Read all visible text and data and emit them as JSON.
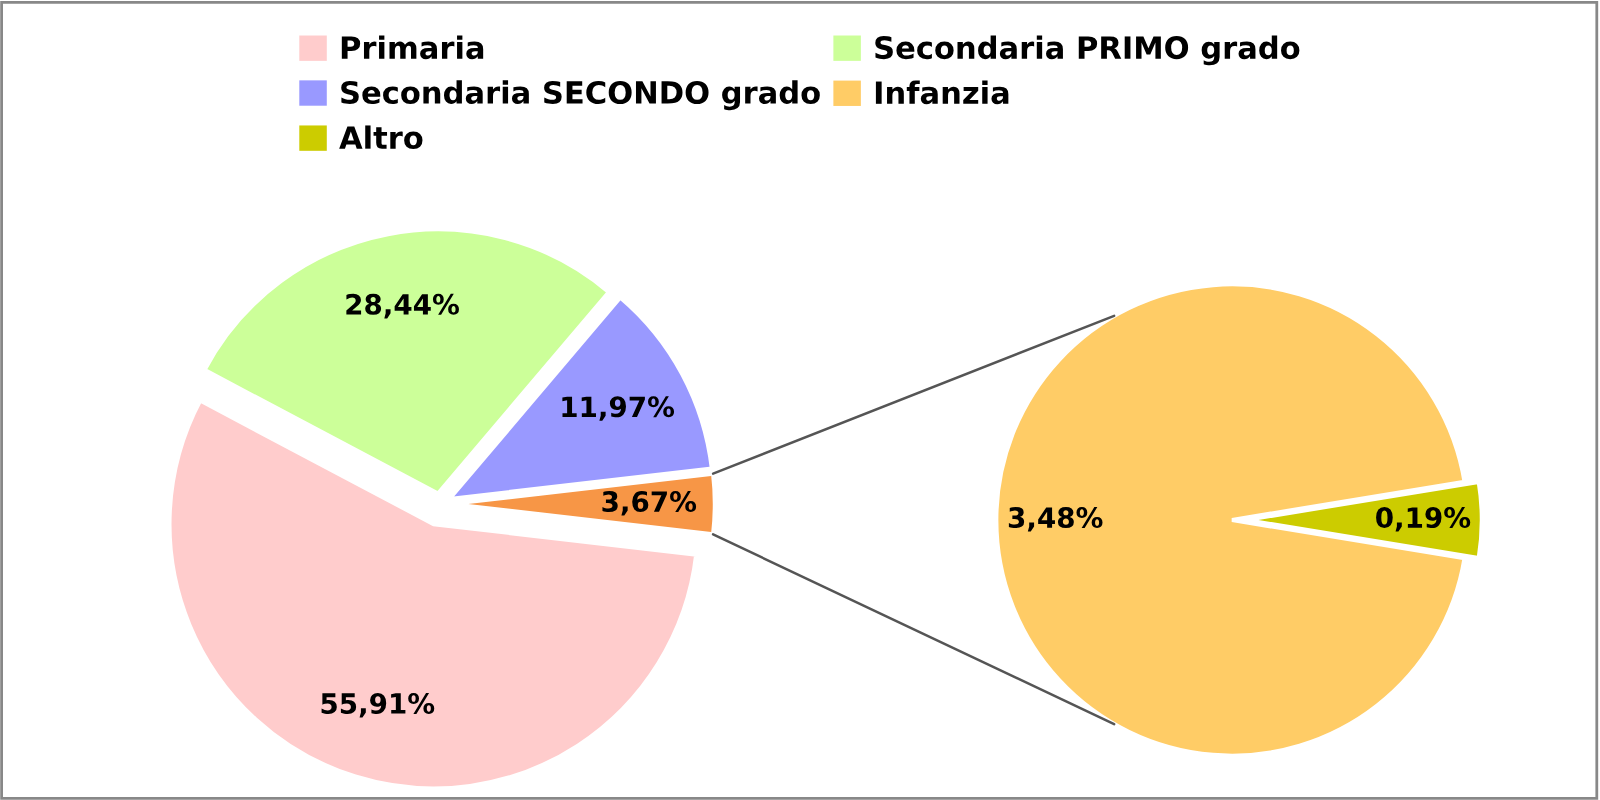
{
  "chart_data": [
    {
      "type": "pie",
      "categories": [
        "Primaria",
        "Secondaria PRIMO grado",
        "Secondaria SECONDO grado",
        null
      ],
      "values": [
        55.91,
        28.44,
        11.97,
        3.67
      ],
      "colors": [
        "#ffcccc",
        "#ccff99",
        "#9999ff",
        "#f79646"
      ],
      "value_labels": [
        "55,91%",
        "28,44%",
        "11,97%",
        "3,67%"
      ],
      "legend": "top"
    },
    {
      "type": "pie",
      "categories": [
        "Infanzia",
        "Altro"
      ],
      "values": [
        3.48,
        0.19
      ],
      "colors": [
        "#ffcc66",
        "#cccc00"
      ],
      "value_labels": [
        "3,48%",
        "0,19%"
      ],
      "legend": "top"
    }
  ]
}
